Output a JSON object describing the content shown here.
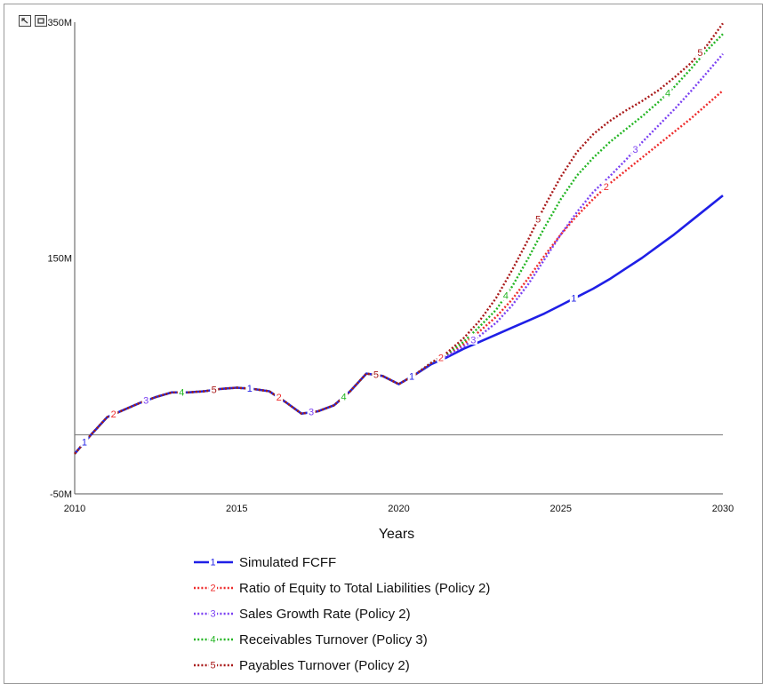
{
  "toolbar": {
    "left_icon": "collapse-icon",
    "right_icon": "zoom-fit-icon"
  },
  "chart_data": {
    "type": "line",
    "title": "",
    "xlabel": "Years",
    "ylabel": "",
    "xlim": [
      2010,
      2030
    ],
    "ylim": [
      -50,
      350
    ],
    "x_ticks": [
      2010,
      2015,
      2020,
      2025,
      2030
    ],
    "x_tick_labels": [
      "2010",
      "2015",
      "2020",
      "2025",
      "2030"
    ],
    "y_ticks": [
      -50,
      150,
      350
    ],
    "y_tick_labels": [
      "-50M",
      "150M",
      "350M"
    ],
    "zero_line": 0,
    "grid": false,
    "legend_position": "bottom",
    "series": [
      {
        "id": "1",
        "name": "Simulated FCFF",
        "color": "#1f1fe6",
        "dash": "solid",
        "x": [
          2010,
          2010.5,
          2011,
          2011.5,
          2012,
          2012.5,
          2013,
          2013.5,
          2014,
          2014.5,
          2015,
          2015.5,
          2016,
          2016.5,
          2017,
          2017.5,
          2018,
          2018.5,
          2019,
          2019.5,
          2020,
          2020.5,
          2021,
          2021.5,
          2022,
          2022.5,
          2023,
          2023.5,
          2024,
          2024.5,
          2025,
          2025.5,
          2026,
          2026.5,
          2027,
          2027.5,
          2028,
          2028.5,
          2029,
          2029.5,
          2030
        ],
        "y": [
          -16,
          0,
          15,
          21,
          27,
          32,
          36,
          36,
          37,
          39,
          40,
          39,
          37,
          28,
          18,
          20,
          25,
          37,
          52,
          50,
          43,
          51,
          60,
          66,
          73,
          79,
          85,
          91,
          97,
          103,
          110,
          117,
          124,
          132,
          141,
          150,
          160,
          170,
          181,
          192,
          203
        ]
      },
      {
        "id": "2",
        "name": "Ratio of Equity to Total Liabilities (Policy 2)",
        "color": "#ee2a2a",
        "dash": "dotted",
        "x": [
          2010,
          2010.5,
          2011,
          2011.5,
          2012,
          2012.5,
          2013,
          2013.5,
          2014,
          2014.5,
          2015,
          2015.5,
          2016,
          2016.5,
          2017,
          2017.5,
          2018,
          2018.5,
          2019,
          2019.5,
          2020,
          2020.5,
          2021,
          2021.5,
          2022,
          2022.5,
          2023,
          2023.5,
          2024,
          2024.5,
          2025,
          2025.5,
          2026,
          2026.5,
          2027,
          2027.5,
          2028,
          2028.5,
          2029,
          2029.5,
          2030
        ],
        "y": [
          -16,
          0,
          15,
          21,
          27,
          32,
          36,
          36,
          37,
          39,
          40,
          39,
          37,
          28,
          18,
          20,
          25,
          37,
          52,
          50,
          43,
          51,
          61,
          68,
          77,
          88,
          100,
          115,
          133,
          152,
          170,
          186,
          200,
          213,
          224,
          235,
          246,
          257,
          268,
          280,
          292
        ]
      },
      {
        "id": "3",
        "name": "Sales Growth Rate (Policy 2)",
        "color": "#7a3ff2",
        "dash": "dotted",
        "x": [
          2010,
          2010.5,
          2011,
          2011.5,
          2012,
          2012.5,
          2013,
          2013.5,
          2014,
          2014.5,
          2015,
          2015.5,
          2016,
          2016.5,
          2017,
          2017.5,
          2018,
          2018.5,
          2019,
          2019.5,
          2020,
          2020.5,
          2021,
          2021.5,
          2022,
          2022.5,
          2023,
          2023.5,
          2024,
          2024.5,
          2025,
          2025.5,
          2026,
          2026.5,
          2027,
          2027.5,
          2028,
          2028.5,
          2029,
          2029.5,
          2030
        ],
        "y": [
          -16,
          0,
          15,
          21,
          27,
          32,
          36,
          36,
          37,
          39,
          40,
          39,
          37,
          28,
          18,
          20,
          25,
          37,
          52,
          50,
          43,
          51,
          61,
          67,
          75,
          84,
          95,
          110,
          128,
          149,
          170,
          189,
          206,
          219,
          233,
          248,
          262,
          276,
          291,
          307,
          323
        ]
      },
      {
        "id": "4",
        "name": "Receivables Turnover (Policy 3)",
        "color": "#22b522",
        "dash": "dotted",
        "x": [
          2010,
          2010.5,
          2011,
          2011.5,
          2012,
          2012.5,
          2013,
          2013.5,
          2014,
          2014.5,
          2015,
          2015.5,
          2016,
          2016.5,
          2017,
          2017.5,
          2018,
          2018.5,
          2019,
          2019.5,
          2020,
          2020.5,
          2021,
          2021.5,
          2022,
          2022.5,
          2023,
          2023.5,
          2024,
          2024.5,
          2025,
          2025.5,
          2026,
          2026.5,
          2027,
          2027.5,
          2028,
          2028.5,
          2029,
          2029.5,
          2030
        ],
        "y": [
          -16,
          0,
          15,
          21,
          27,
          32,
          36,
          36,
          37,
          39,
          40,
          39,
          37,
          28,
          18,
          20,
          25,
          37,
          52,
          50,
          43,
          51,
          61,
          69,
          79,
          92,
          106,
          126,
          150,
          176,
          200,
          220,
          235,
          248,
          259,
          270,
          282,
          295,
          310,
          326,
          340
        ]
      },
      {
        "id": "5",
        "name": "Payables Turnover (Policy 2)",
        "color": "#a81818",
        "dash": "dotted",
        "x": [
          2010,
          2010.5,
          2011,
          2011.5,
          2012,
          2012.5,
          2013,
          2013.5,
          2014,
          2014.5,
          2015,
          2015.5,
          2016,
          2016.5,
          2017,
          2017.5,
          2018,
          2018.5,
          2019,
          2019.5,
          2020,
          2020.5,
          2021,
          2021.5,
          2022,
          2022.5,
          2023,
          2023.5,
          2024,
          2024.5,
          2025,
          2025.5,
          2026,
          2026.5,
          2027,
          2027.5,
          2028,
          2028.5,
          2029,
          2029.5,
          2030
        ],
        "y": [
          -16,
          0,
          15,
          21,
          27,
          32,
          36,
          36,
          37,
          39,
          40,
          39,
          37,
          28,
          18,
          20,
          25,
          37,
          52,
          50,
          43,
          51,
          61,
          70,
          82,
          97,
          116,
          140,
          166,
          194,
          219,
          240,
          255,
          266,
          275,
          283,
          292,
          303,
          315,
          330,
          349
        ]
      }
    ],
    "markers": [
      {
        "series": "1",
        "label": "1",
        "x": [
          2010.3,
          2015.4,
          2020.4,
          2025.4
        ]
      },
      {
        "series": "2",
        "label": "2",
        "x": [
          2011.2,
          2016.3,
          2021.3,
          2026.4
        ]
      },
      {
        "series": "3",
        "label": "3",
        "x": [
          2012.2,
          2017.3,
          2022.3,
          2027.3
        ]
      },
      {
        "series": "4",
        "label": "4",
        "x": [
          2013.3,
          2018.3,
          2023.3,
          2028.3
        ]
      },
      {
        "series": "5",
        "label": "5",
        "x": [
          2014.3,
          2019.3,
          2024.3,
          2029.3
        ]
      }
    ]
  }
}
